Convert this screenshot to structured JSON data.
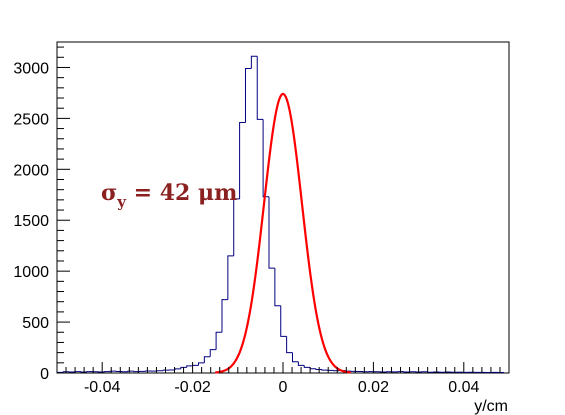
{
  "chart_data": {
    "type": "histogram",
    "title": "",
    "xlabel": "y/cm",
    "ylabel": "",
    "xlim": [
      -0.05,
      0.05
    ],
    "ylim": [
      0,
      3250
    ],
    "x_ticks": [
      "-0.04",
      "-0.02",
      "0",
      "0.02",
      "0.04"
    ],
    "x_tick_values": [
      -0.04,
      -0.02,
      0,
      0.02,
      0.04
    ],
    "y_ticks": [
      "0",
      "500",
      "1000",
      "1500",
      "2000",
      "2500",
      "3000"
    ],
    "y_tick_values": [
      0,
      500,
      1000,
      1500,
      2000,
      2500,
      3000
    ],
    "grid": false,
    "colors": {
      "histogram": "#000080",
      "fit": "#ff0000",
      "annotation": "#8b2020",
      "axis": "#000000"
    },
    "annotation": {
      "symbol": "σ",
      "subscript": "y",
      "text": " = 42 μm"
    },
    "histogram": {
      "bin_width": 0.0013,
      "bin_edges_start": -0.0499,
      "values": [
        6,
        12,
        10,
        14,
        10,
        14,
        12,
        10,
        14,
        18,
        15,
        12,
        18,
        14,
        16,
        20,
        18,
        22,
        28,
        30,
        40,
        55,
        70,
        75,
        100,
        160,
        230,
        400,
        720,
        1150,
        1710,
        2460,
        2990,
        3110,
        2490,
        1730,
        1030,
        660,
        360,
        200,
        110,
        75,
        55,
        42,
        35,
        28,
        26,
        22,
        24,
        18,
        16,
        15,
        12,
        14,
        12,
        10,
        12,
        11,
        14,
        10,
        12,
        10,
        12,
        8,
        10,
        8,
        10,
        8,
        8,
        6,
        8,
        6,
        6,
        5,
        6,
        5
      ]
    },
    "fit": {
      "type": "gaussian",
      "amplitude": 2740,
      "mean": 0.0,
      "sigma": 0.0042,
      "x_range": [
        -0.015,
        0.015
      ]
    }
  }
}
